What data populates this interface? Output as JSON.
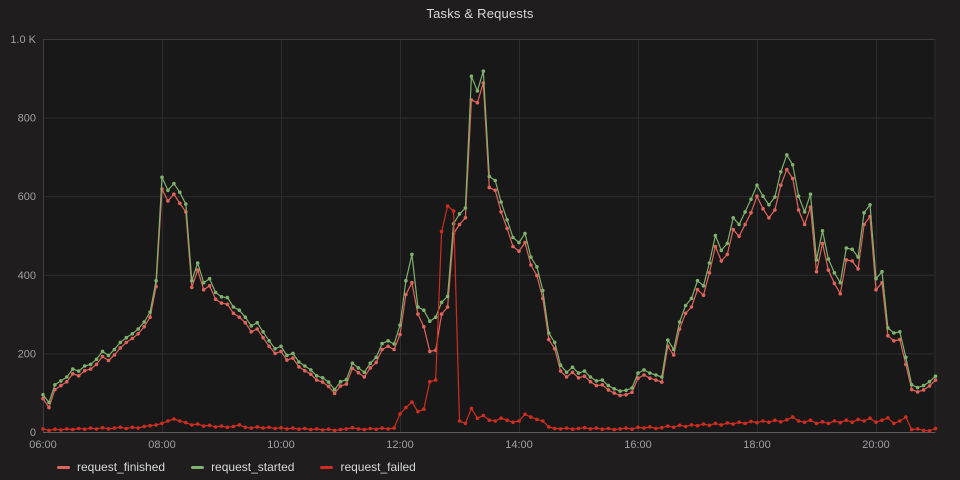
{
  "title": "Tasks & Requests",
  "colors": {
    "panel_background": "#1f1d1d",
    "plot_background": "#191818",
    "grid_line": "#2d2d30",
    "plot_border": "#3c3c40",
    "x_axis_line": "#5c5c60",
    "tick_label": "#9fa0a3",
    "title_text": "#d8d9da",
    "legend_text": "#d8d9da"
  },
  "chart_data": {
    "type": "line",
    "title": "Tasks & Requests",
    "xlabel": "",
    "ylabel": "",
    "grid": true,
    "legend_position": "bottom-left",
    "markers": true,
    "x_axis": {
      "start_hour": 6,
      "end_hour": 21,
      "step_minutes": 6,
      "tick_hours": [
        6,
        8,
        10,
        12,
        14,
        16,
        18,
        20
      ],
      "tick_labels": [
        "06:00",
        "08:00",
        "10:00",
        "12:00",
        "14:00",
        "16:00",
        "18:00",
        "20:00"
      ]
    },
    "y_axis": {
      "min": 0,
      "max": 1000,
      "ticks": [
        0,
        200,
        400,
        600,
        800,
        1000
      ],
      "tick_labels": [
        "0",
        "200",
        "400",
        "600",
        "800",
        "1.0 K"
      ]
    },
    "series": [
      {
        "name": "request_finished",
        "color": "#e0645c",
        "values": [
          85,
          62,
          108,
          118,
          128,
          148,
          143,
          156,
          160,
          172,
          192,
          182,
          196,
          214,
          228,
          238,
          250,
          268,
          292,
          370,
          618,
          588,
          605,
          582,
          560,
          368,
          412,
          362,
          372,
          338,
          328,
          325,
          302,
          292,
          278,
          255,
          262,
          240,
          218,
          200,
          205,
          183,
          188,
          166,
          156,
          147,
          132,
          127,
          116,
          98,
          117,
          122,
          162,
          151,
          140,
          163,
          177,
          210,
          218,
          210,
          248,
          350,
          380,
          300,
          268,
          205,
          208,
          300,
          318,
          505,
          528,
          545,
          845,
          838,
          888,
          622,
          615,
          560,
          518,
          472,
          460,
          482,
          425,
          398,
          340,
          235,
          212,
          155,
          140,
          152,
          138,
          142,
          128,
          118,
          120,
          107,
          99,
          93,
          95,
          101,
          137,
          145,
          137,
          132,
          127,
          218,
          196,
          262,
          302,
          318,
          362,
          348,
          405,
          472,
          435,
          452,
          515,
          498,
          528,
          558,
          600,
          568,
          545,
          565,
          628,
          668,
          645,
          565,
          528,
          572,
          408,
          480,
          412,
          378,
          352,
          438,
          435,
          415,
          528,
          548,
          362,
          380,
          245,
          232,
          235,
          172,
          108,
          102,
          107,
          117,
          132
        ]
      },
      {
        "name": "request_started",
        "color": "#7eb26d",
        "values": [
          95,
          75,
          120,
          130,
          140,
          160,
          155,
          168,
          172,
          185,
          205,
          195,
          210,
          228,
          240,
          250,
          262,
          280,
          305,
          385,
          648,
          615,
          632,
          610,
          580,
          385,
          430,
          380,
          390,
          355,
          344,
          342,
          318,
          310,
          292,
          270,
          278,
          255,
          232,
          212,
          218,
          195,
          200,
          178,
          168,
          158,
          143,
          138,
          127,
          108,
          128,
          133,
          175,
          163,
          152,
          175,
          190,
          225,
          232,
          224,
          272,
          385,
          452,
          318,
          310,
          282,
          292,
          330,
          345,
          530,
          555,
          570,
          905,
          868,
          918,
          650,
          640,
          585,
          540,
          495,
          482,
          505,
          445,
          420,
          360,
          252,
          228,
          170,
          152,
          165,
          150,
          155,
          140,
          130,
          132,
          118,
          110,
          104,
          106,
          112,
          150,
          158,
          150,
          145,
          140,
          234,
          210,
          280,
          322,
          340,
          385,
          372,
          430,
          500,
          462,
          480,
          545,
          528,
          560,
          592,
          628,
          600,
          578,
          598,
          662,
          705,
          680,
          600,
          560,
          605,
          438,
          512,
          440,
          405,
          380,
          468,
          465,
          445,
          558,
          578,
          390,
          408,
          265,
          252,
          255,
          190,
          120,
          113,
          118,
          128,
          142
        ]
      },
      {
        "name": "request_failed",
        "color": "#cf2d20",
        "values": [
          8,
          4,
          7,
          5,
          8,
          6,
          9,
          7,
          10,
          8,
          11,
          8,
          10,
          12,
          9,
          12,
          10,
          14,
          16,
          18,
          22,
          28,
          33,
          28,
          24,
          18,
          20,
          15,
          17,
          13,
          15,
          12,
          14,
          18,
          12,
          10,
          13,
          10,
          12,
          9,
          11,
          8,
          10,
          7,
          9,
          6,
          8,
          5,
          7,
          4,
          6,
          8,
          11,
          8,
          6,
          9,
          7,
          10,
          8,
          10,
          46,
          62,
          76,
          52,
          58,
          128,
          132,
          510,
          575,
          562,
          28,
          22,
          60,
          35,
          42,
          30,
          28,
          35,
          30,
          25,
          28,
          45,
          38,
          32,
          28,
          13,
          9,
          8,
          10,
          7,
          9,
          11,
          8,
          10,
          7,
          9,
          6,
          8,
          10,
          7,
          12,
          10,
          13,
          9,
          11,
          15,
          12,
          17,
          14,
          18,
          16,
          20,
          17,
          22,
          18,
          23,
          20,
          25,
          22,
          27,
          24,
          28,
          25,
          30,
          26,
          31,
          38,
          28,
          25,
          30,
          22,
          26,
          22,
          28,
          24,
          30,
          25,
          32,
          28,
          35,
          25,
          30,
          36,
          22,
          28,
          38,
          6,
          8,
          4,
          3,
          9
        ]
      }
    ]
  },
  "legend": {
    "items": [
      {
        "label": "request_finished"
      },
      {
        "label": "request_started"
      },
      {
        "label": "request_failed"
      }
    ]
  }
}
